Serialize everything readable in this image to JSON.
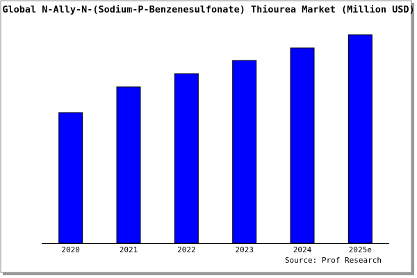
{
  "chart_data": {
    "type": "bar",
    "title": "Global N-Ally-N-(Sodium-P-Benzenesulfonate) Thiourea Market (Million USD)",
    "categories": [
      "2020",
      "2021",
      "2022",
      "2023",
      "2024",
      "2025e"
    ],
    "values": [
      188,
      225,
      244,
      263,
      281,
      300
    ],
    "color": "#0000ff",
    "ylim": [
      0,
      305
    ],
    "source": "Source: Prof Research"
  }
}
